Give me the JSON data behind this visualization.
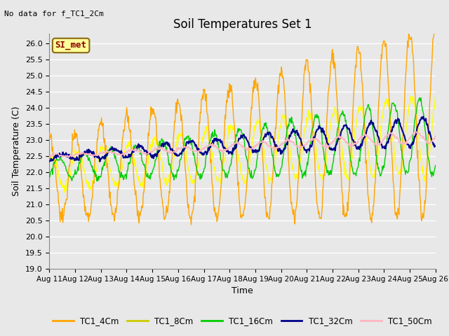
{
  "title": "Soil Temperatures Set 1",
  "top_left_text": "No data for f_TC1_2Cm",
  "annotation_text": "SI_met",
  "xlabel": "Time",
  "ylabel": "Soil Temperature (C)",
  "ylim": [
    19.0,
    26.3
  ],
  "yticks": [
    19.0,
    19.5,
    20.0,
    20.5,
    21.0,
    21.5,
    22.0,
    22.5,
    23.0,
    23.5,
    24.0,
    24.5,
    25.0,
    25.5,
    26.0
  ],
  "xtick_labels": [
    "Aug 11",
    "Aug 12",
    "Aug 13",
    "Aug 14",
    "Aug 15",
    "Aug 16",
    "Aug 17",
    "Aug 18",
    "Aug 19",
    "Aug 20",
    "Aug 21",
    "Aug 22",
    "Aug 23",
    "Aug 24",
    "Aug 25",
    "Aug 26"
  ],
  "colors": {
    "TC1_4Cm": "#FFA500",
    "TC1_8Cm": "#FFFF00",
    "TC1_16Cm": "#00CC00",
    "TC1_32Cm": "#00008B",
    "TC1_50Cm": "#FFB6C1"
  },
  "background_color": "#E8E8E8",
  "plot_bg_color": "#E8E8E8",
  "grid_color": "#FFFFFF",
  "figsize": [
    6.4,
    4.8
  ],
  "dpi": 100
}
